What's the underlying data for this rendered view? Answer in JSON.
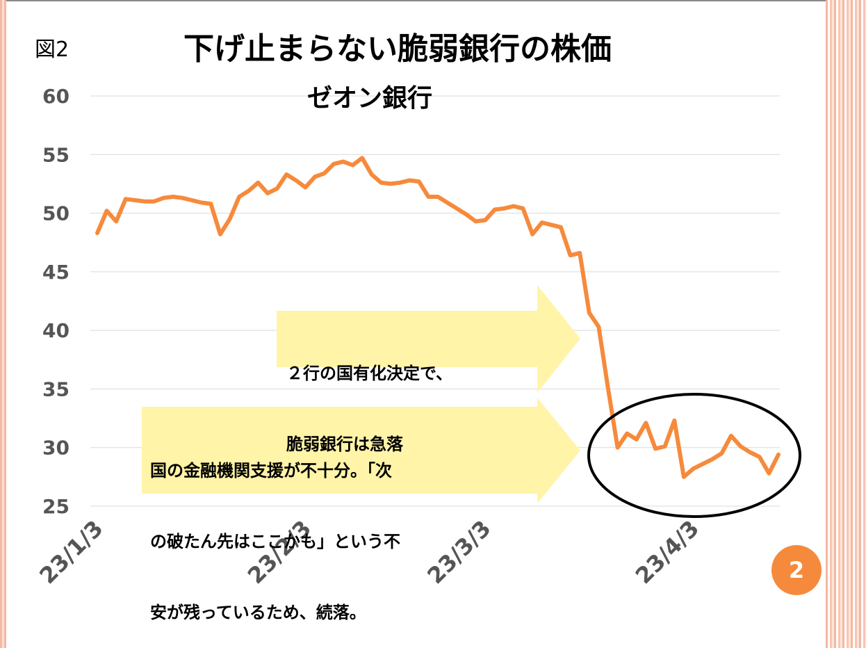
{
  "figure_label": "図2",
  "title": "下げ止まらない脆弱銀行の株価",
  "subtitle": "ゼオン銀行",
  "callouts": [
    {
      "lines": [
        "２行の国有化決定で、",
        "脆弱銀行は急落"
      ]
    },
    {
      "lines": [
        "国の金融機関支援が不十分。「次",
        "の破たん先はここかも」という不",
        "安が残っているため、続落。"
      ]
    }
  ],
  "page_number": "2",
  "colors": {
    "line": "#f68a3c",
    "callout_fill": "#fff4a8",
    "badge": "#f68a3c",
    "ellipse": "#000000"
  },
  "chart_data": {
    "type": "line",
    "title": "下げ止まらない脆弱銀行の株価",
    "subtitle": "ゼオン銀行",
    "xlabel": "",
    "ylabel": "",
    "ylim": [
      25,
      60
    ],
    "yticks": [
      "25",
      "30",
      "35",
      "40",
      "45",
      "50",
      "55",
      "60"
    ],
    "xticks": [
      {
        "label": "23/1/3",
        "index": 0
      },
      {
        "label": "23/2/3",
        "index": 22
      },
      {
        "label": "23/3/3",
        "index": 41
      },
      {
        "label": "23/4/3",
        "index": 63
      }
    ],
    "grid": true,
    "series": [
      {
        "values": [
          48.3,
          50.2,
          49.3,
          51.2,
          51.1,
          51.0,
          51.0,
          51.3,
          51.4,
          51.3,
          51.1,
          50.9,
          50.8,
          48.2,
          49.5,
          51.4,
          51.9,
          52.6,
          51.7,
          52.1,
          53.3,
          52.8,
          52.2,
          53.1,
          53.4,
          54.2,
          54.4,
          54.1,
          54.7,
          53.3,
          52.6,
          52.5,
          52.6,
          52.8,
          52.7,
          51.4,
          51.4,
          50.9,
          50.4,
          49.9,
          49.3,
          49.4,
          50.3,
          50.4,
          50.6,
          50.4,
          48.2,
          49.2,
          49.0,
          48.8,
          46.4,
          46.6,
          41.5,
          40.3,
          35.0,
          30.0,
          31.2,
          30.7,
          32.1,
          29.9,
          30.1,
          32.3,
          27.5,
          28.2,
          28.6,
          29.0,
          29.5,
          31.0,
          30.1,
          29.6,
          29.2,
          27.8,
          29.4
        ]
      }
    ]
  }
}
